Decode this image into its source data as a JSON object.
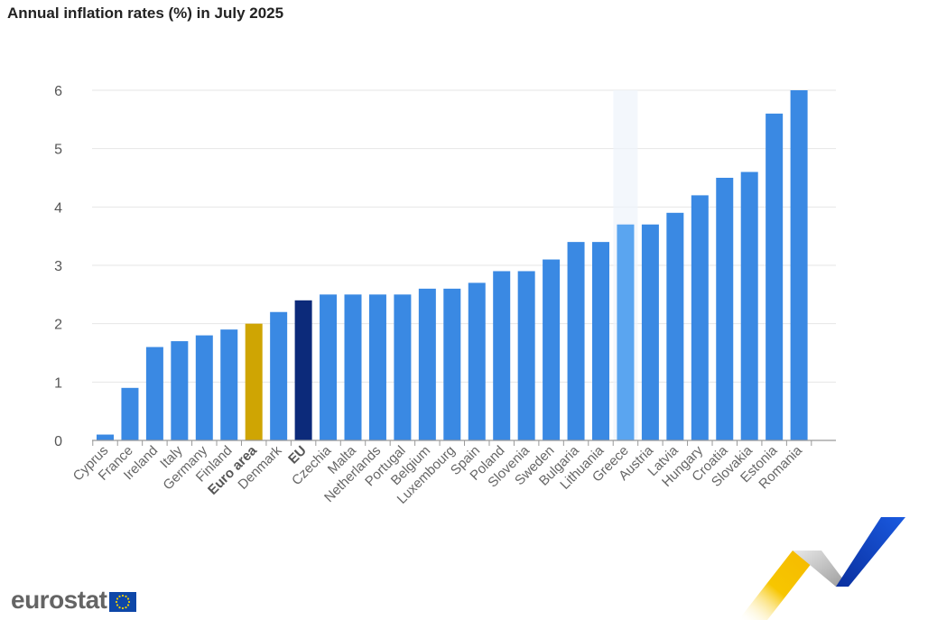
{
  "header": {
    "title": "Annual inflation rates (%) in July 2025"
  },
  "logo": {
    "text": "eurostat"
  },
  "colors": {
    "bar": "#3a89e3",
    "highlight_bar": "#5aa5f0",
    "euro_area": "#cfa503",
    "eu": "#0c2a7a",
    "grid": "#e6e6e6",
    "axis": "#999999"
  },
  "chart_data": {
    "type": "bar",
    "title": "Annual inflation rates (%) in July 2025",
    "xlabel": "",
    "ylabel": "",
    "ylim": [
      0,
      6
    ],
    "yticks": [
      0,
      1,
      2,
      3,
      4,
      5,
      6
    ],
    "grid": true,
    "legend": "none",
    "highlighted": "Greece",
    "categories": [
      "Cyprus",
      "France",
      "Ireland",
      "Italy",
      "Germany",
      "Finland",
      "Euro area",
      "Denmark",
      "EU",
      "Czechia",
      "Malta",
      "Netherlands",
      "Portugal",
      "Belgium",
      "Luxembourg",
      "Spain",
      "Poland",
      "Slovenia",
      "Sweden",
      "Bulgaria",
      "Lithuania",
      "Greece",
      "Austria",
      "Latvia",
      "Hungary",
      "Croatia",
      "Slovakia",
      "Estonia",
      "Romania"
    ],
    "values": [
      0.1,
      0.9,
      1.6,
      1.7,
      1.8,
      1.9,
      2.0,
      2.2,
      2.4,
      2.5,
      2.5,
      2.5,
      2.5,
      2.6,
      2.6,
      2.7,
      2.9,
      2.9,
      3.1,
      3.4,
      3.4,
      3.7,
      3.7,
      3.9,
      4.2,
      4.5,
      4.6,
      5.6,
      6.0
    ],
    "bold_categories": [
      "Euro area",
      "EU"
    ]
  }
}
